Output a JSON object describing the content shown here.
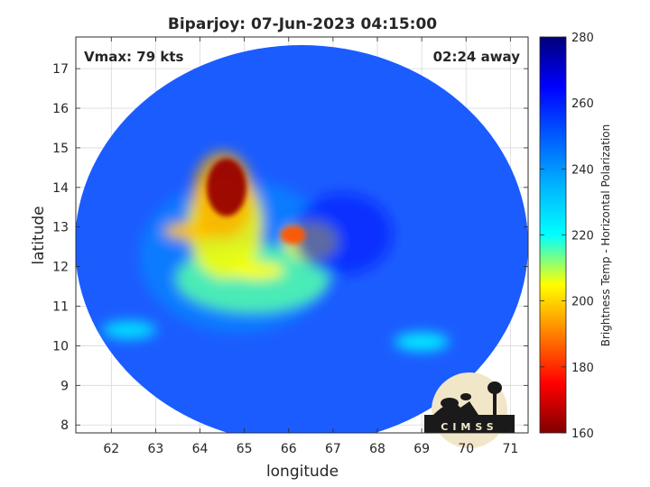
{
  "chart_data": {
    "type": "heatmap",
    "title": "Biparjoy: 07-Jun-2023 04:15:00",
    "xlabel": "longitude",
    "ylabel": "latitude",
    "xlim": [
      61.2,
      71.4
    ],
    "ylim": [
      7.8,
      17.8
    ],
    "xticks": [
      62,
      63,
      64,
      65,
      66,
      67,
      68,
      69,
      70,
      71
    ],
    "yticks": [
      8,
      9,
      10,
      11,
      12,
      13,
      14,
      15,
      16,
      17
    ],
    "grid": true,
    "annotations": {
      "vmax": "Vmax: 79 kts",
      "time_away": "02:24 away"
    },
    "storm_center": {
      "lon": 66.3,
      "lat": 12.6
    },
    "colorbar": {
      "label": "Brightness Temp - Horizontal Polarization",
      "range": [
        160,
        280
      ],
      "ticks": [
        160,
        180,
        200,
        220,
        240,
        260,
        280
      ],
      "colormap": "jet"
    },
    "features": [
      {
        "name": "intense convection NW of center",
        "lon": 64.6,
        "lat": 14.0,
        "value": 163
      },
      {
        "name": "convection near center",
        "lon": 66.1,
        "lat": 12.8,
        "value": 185
      },
      {
        "name": "inner rainband",
        "lon": 65.3,
        "lat": 11.9,
        "value": 205
      },
      {
        "name": "western band",
        "lon": 63.8,
        "lat": 12.9,
        "value": 198
      },
      {
        "name": "outer band west",
        "lon": 62.4,
        "lat": 10.4,
        "value": 225
      },
      {
        "name": "outer band east",
        "lon": 69.0,
        "lat": 10.1,
        "value": 222
      }
    ],
    "logo": "CIMSS"
  }
}
